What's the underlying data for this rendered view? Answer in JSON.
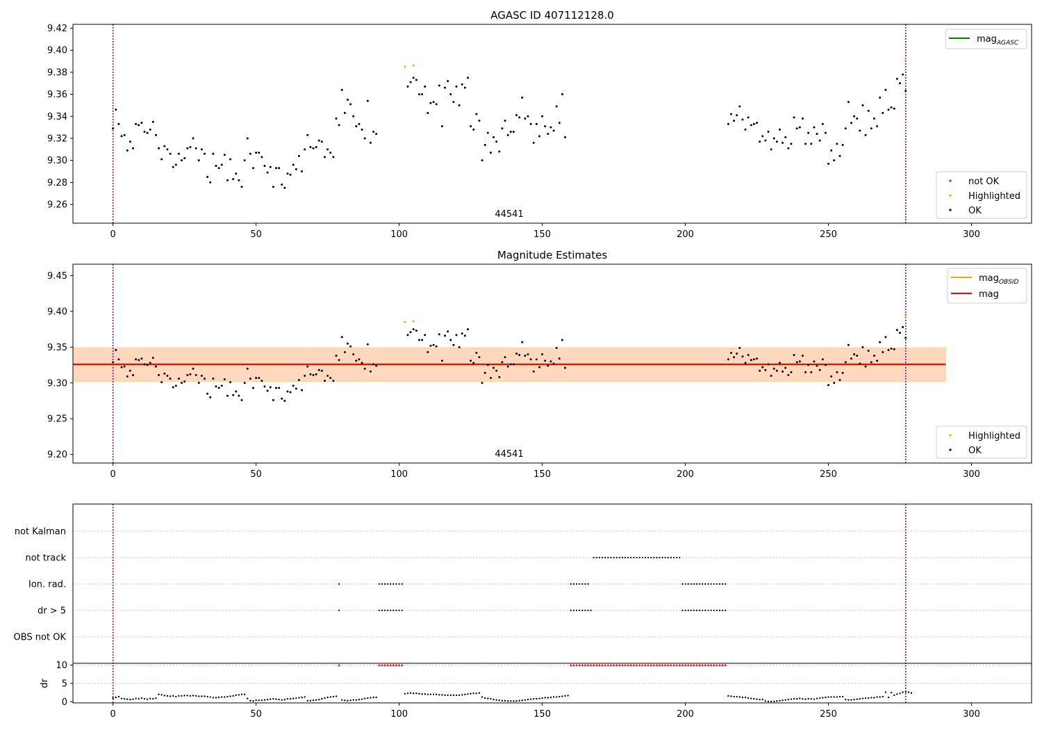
{
  "chart_data": [
    {
      "type": "scatter",
      "title": "AGASC ID 407112128.0",
      "xlim": [
        -14,
        321
      ],
      "ylim": [
        9.243,
        9.4235
      ],
      "xticks": [
        0,
        50,
        100,
        150,
        200,
        250,
        300
      ],
      "yticks": [
        9.26,
        9.28,
        9.3,
        9.32,
        9.34,
        9.36,
        9.38,
        9.4,
        9.42
      ],
      "ytick_labels": [
        "9.26",
        "9.28",
        "9.30",
        "9.32",
        "9.34",
        "9.36",
        "9.38",
        "9.40",
        "9.42"
      ],
      "vlines": [
        0,
        277
      ],
      "annotation": "44541",
      "legend_lines": [
        {
          "label_base": "mag",
          "label_sub": "AGASC",
          "color": "#008000"
        }
      ],
      "legend_points": [
        {
          "label": "not OK",
          "color": "#ff0000"
        },
        {
          "label": "Highlighted",
          "color": "#ffa500"
        },
        {
          "label": "OK",
          "color": "#000000"
        }
      ],
      "highlighted": {
        "x": [
          102,
          105,
          277
        ],
        "y": [
          9.385,
          9.386,
          9.392
        ]
      },
      "ok_segments": [
        {
          "x_start": 0,
          "y": [
            9.329,
            9.346,
            9.333,
            9.322,
            9.323,
            9.309,
            9.317,
            9.311,
            9.333,
            9.332,
            9.334,
            9.326,
            9.325,
            9.328,
            9.335,
            9.323,
            9.311,
            9.301,
            9.313,
            9.31,
            9.306,
            9.294,
            9.296,
            9.306,
            9.3,
            9.302,
            9.311,
            9.312,
            9.32,
            9.311,
            9.3,
            9.31,
            9.306,
            9.285,
            9.28,
            9.306,
            9.295,
            9.293,
            9.296,
            9.305,
            9.282,
            9.301,
            9.283,
            9.288,
            9.282,
            9.276,
            9.3,
            9.32,
            9.306,
            9.293,
            9.307,
            9.307,
            9.303,
            9.295,
            9.289,
            9.294,
            9.276,
            9.293,
            9.293,
            9.278,
            9.275,
            9.288,
            9.287,
            9.296,
            9.292,
            9.304,
            9.29,
            9.31,
            9.323,
            9.312,
            9.311,
            9.312,
            9.318,
            9.317,
            9.303,
            9.31,
            9.307,
            9.303,
            9.338,
            9.332,
            9.364,
            9.343,
            9.355,
            9.351,
            9.34,
            9.331,
            9.333,
            9.328,
            9.32,
            9.354,
            9.316,
            9.326,
            9.324
          ]
        },
        {
          "x_start": 103,
          "y": [
            9.367,
            9.371,
            9.375,
            9.373,
            9.36,
            9.36,
            9.367,
            9.343,
            9.352,
            9.353,
            9.351,
            9.368,
            9.331,
            9.366,
            9.372,
            9.36,
            9.353,
            9.367,
            9.35,
            9.369,
            9.366,
            9.375,
            9.331,
            9.328,
            9.342,
            9.336,
            9.3,
            9.314,
            9.325,
            9.307,
            9.321,
            9.317,
            9.308,
            9.329,
            9.336,
            9.323,
            9.326,
            9.326,
            9.341,
            9.339,
            9.357,
            9.338,
            9.34,
            9.333,
            9.316,
            9.333,
            9.322,
            9.34,
            9.331,
            9.324,
            9.33,
            9.327,
            9.349,
            9.334,
            9.36,
            9.321
          ]
        },
        {
          "x_start": 215,
          "y": [
            9.333,
            9.342,
            9.336,
            9.341,
            9.349,
            9.337,
            9.328,
            9.339,
            9.332,
            9.333,
            9.334,
            9.317,
            9.322,
            9.318,
            9.326,
            9.31,
            9.32,
            9.317,
            9.328,
            9.316,
            9.321,
            9.311,
            9.315,
            9.339,
            9.329,
            9.33,
            9.338,
            9.315,
            9.325,
            9.315,
            9.33,
            9.324,
            9.318,
            9.333,
            9.325,
            9.297,
            9.309,
            9.3,
            9.315,
            9.304,
            9.314,
            9.329,
            9.353,
            9.334,
            9.34,
            9.338,
            9.327,
            9.35,
            9.323,
            9.345,
            9.329,
            9.338,
            9.331,
            9.357,
            9.343,
            9.364,
            9.346,
            9.348,
            9.347,
            9.374,
            9.37,
            9.378,
            9.363
          ]
        }
      ]
    },
    {
      "type": "scatter",
      "title": "Magnitude Estimates",
      "xlim": [
        -14,
        321
      ],
      "ylim": [
        9.188,
        9.466
      ],
      "xticks": [
        0,
        50,
        100,
        150,
        200,
        250,
        300
      ],
      "yticks": [
        9.2,
        9.25,
        9.3,
        9.35,
        9.4,
        9.45
      ],
      "ytick_labels": [
        "9.20",
        "9.25",
        "9.30",
        "9.35",
        "9.40",
        "9.45"
      ],
      "vlines": [
        0,
        277
      ],
      "annotation": "44541",
      "mag": 9.326,
      "mag_obsid": 9.3255,
      "band": [
        9.302,
        9.349
      ],
      "band_x": [
        -14,
        291
      ],
      "legend_lines": [
        {
          "label_base": "mag",
          "label_sub": "OBSID",
          "color": "#ffa500"
        },
        {
          "label_base": "mag",
          "label_sub": "",
          "color": "#ff0000"
        }
      ],
      "legend_points": [
        {
          "label": "Highlighted",
          "color": "#ffa500"
        },
        {
          "label": "OK",
          "color": "#000000"
        }
      ]
    },
    {
      "type": "scatter",
      "xlim": [
        -14,
        321
      ],
      "xticks": [
        0,
        50,
        100,
        150,
        200,
        250,
        300
      ],
      "vlines": [
        0,
        277
      ],
      "flag_labels": [
        "not Kalman",
        "not track",
        "Ion. rad.",
        "dr > 5",
        "OBS not OK"
      ],
      "flags": [
        {
          "label": "not track",
          "x_ranges": [
            [
              168,
              198
            ]
          ]
        },
        {
          "label": "Ion. rad.",
          "x_ranges": [
            [
              79,
              79
            ],
            [
              93,
              101
            ],
            [
              160,
              166
            ],
            [
              199,
              214
            ]
          ]
        },
        {
          "label": "dr > 5",
          "x_ranges": [
            [
              79,
              79
            ],
            [
              93,
              101
            ],
            [
              160,
              167
            ],
            [
              199,
              214
            ]
          ]
        }
      ],
      "dr": {
        "ylabel": "dr",
        "ylim": [
          -0.3,
          10.5
        ],
        "yticks": [
          0,
          5,
          10
        ],
        "ytick_labels": [
          "0",
          "5",
          "10"
        ],
        "clipped_value": 10,
        "clipped_x_ranges": [
          [
            79,
            79
          ],
          [
            93,
            101
          ],
          [
            160,
            214
          ]
        ],
        "segments": [
          {
            "x_start": 0,
            "values": [
              1.0,
              1.2,
              1.4,
              0.9,
              0.8,
              0.7,
              0.6,
              0.7,
              0.9,
              0.8,
              1.0,
              0.8,
              0.7,
              0.9,
              0.8,
              1.0,
              2.0,
              1.9,
              1.7,
              1.6,
              1.5,
              1.6,
              1.4,
              1.6,
              1.6,
              1.7,
              1.7,
              1.6,
              1.7,
              1.6,
              1.5,
              1.5,
              1.5,
              1.4,
              1.3,
              1.1,
              1.1,
              1.2,
              1.3,
              1.3,
              1.4,
              1.5,
              1.6,
              1.8,
              1.9,
              2.0,
              2.0,
              0.9,
              0.3,
              0.2,
              0.4,
              0.4,
              0.4,
              0.5,
              0.6,
              0.7,
              0.8,
              0.7,
              0.6,
              0.5,
              0.6,
              0.8,
              0.8,
              0.9,
              1.0,
              1.1,
              1.2,
              1.3,
              0.3,
              0.3,
              0.4,
              0.5,
              0.6,
              0.8,
              1.0,
              1.2,
              1.3,
              1.4,
              1.5
            ]
          },
          {
            "x_start": 80,
            "values": [
              0.5,
              0.4,
              0.3,
              0.4,
              0.5,
              0.5,
              0.6,
              0.7,
              0.9,
              1.0,
              1.1,
              1.2,
              1.2
            ]
          },
          {
            "x_start": 102,
            "values": [
              2.2,
              2.3,
              2.4,
              2.3,
              2.3,
              2.2,
              2.1,
              2.1,
              2.0,
              2.0,
              2.0,
              2.0,
              1.9,
              1.9,
              1.8,
              1.8,
              1.8,
              1.8,
              1.8,
              1.8,
              1.9,
              2.0,
              2.1,
              2.2,
              2.3,
              2.3,
              2.4,
              1.3,
              1.0,
              0.9,
              0.8,
              0.6,
              0.5,
              0.4,
              0.3,
              0.3,
              0.2,
              0.2,
              0.2,
              0.2,
              0.3,
              0.4,
              0.5,
              0.6,
              0.7,
              0.8,
              0.8,
              0.9,
              1.0,
              1.1,
              1.1,
              1.2,
              1.3,
              1.3,
              1.4,
              1.5,
              1.6,
              1.7
            ]
          },
          {
            "x_start": 215,
            "values": [
              1.6,
              1.5,
              1.4,
              1.4,
              1.3,
              1.2,
              1.2,
              1.0,
              0.9,
              0.8,
              0.7,
              0.6,
              0.6,
              0.2,
              0.1,
              0.1,
              0.1,
              0.2,
              0.3,
              0.4,
              0.5,
              0.6,
              0.7,
              0.8,
              0.8,
              0.9,
              0.8,
              0.7,
              0.8,
              0.8,
              0.7,
              0.9,
              1.0,
              1.1,
              1.2,
              1.3,
              1.3,
              1.3,
              1.3,
              1.4,
              1.4,
              0.6,
              0.5,
              0.5,
              0.6,
              0.7,
              0.8,
              0.9,
              1.0,
              1.0,
              1.1,
              1.1,
              1.3,
              1.3,
              1.4,
              2.6,
              1.2,
              2.5,
              1.8,
              2.1,
              2.3,
              2.6,
              2.7,
              2.6,
              2.4
            ]
          }
        ]
      }
    }
  ]
}
